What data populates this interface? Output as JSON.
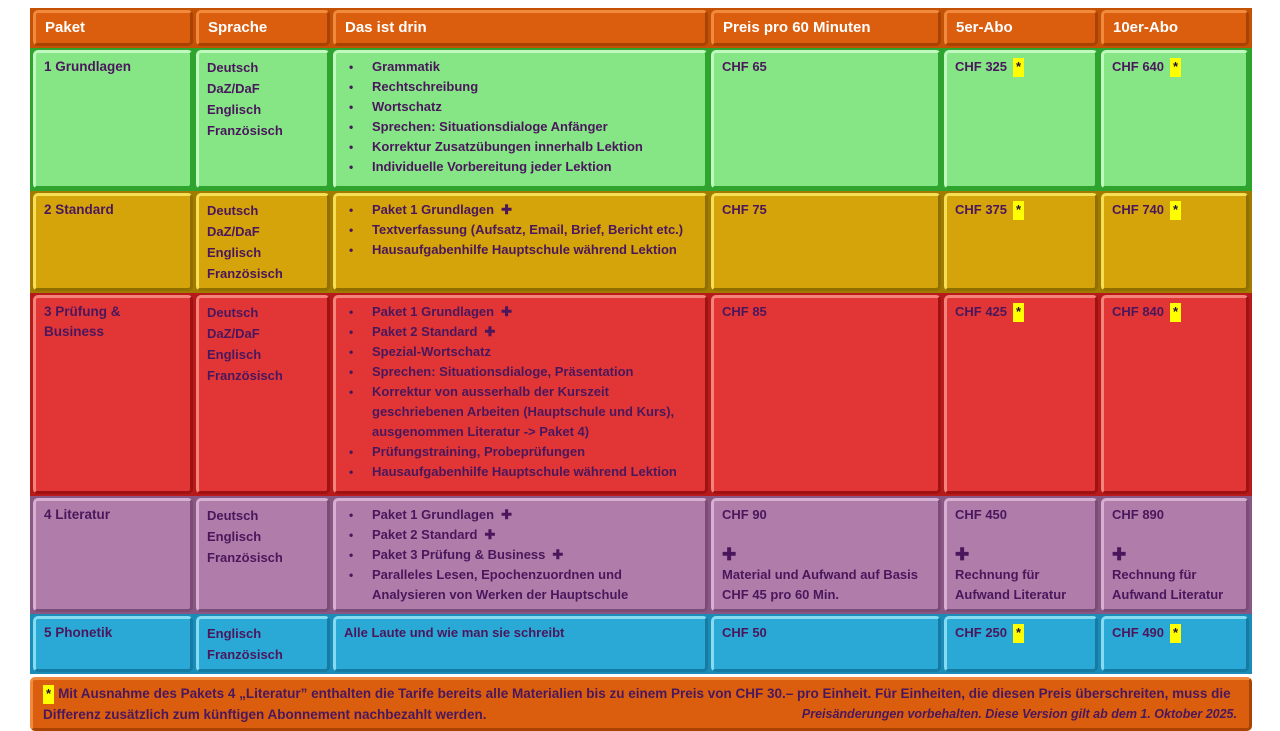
{
  "colors": {
    "text": "#4A175C",
    "header_text": "#FFFFFF",
    "highlight": "#FFFF00",
    "header": {
      "face": "#DB5E0F",
      "light": "#F18A3C",
      "dark": "#A84301",
      "gap": "#C35207"
    }
  },
  "header": {
    "columns": [
      "Paket",
      "Sprache",
      "Das ist drin",
      "Preis pro 60 Minuten",
      "5er-Abo",
      "10er-Abo"
    ]
  },
  "rows": [
    {
      "paket": "1 Grundlagen",
      "sprachen": [
        "Deutsch",
        "DaZ/DaF",
        "Englisch",
        "Französisch"
      ],
      "inhalt": [
        {
          "text": "Grammatik"
        },
        {
          "text": "Rechtschreibung"
        },
        {
          "text": "Wortschatz"
        },
        {
          "text": "Sprechen: Situationsdialoge Anfänger"
        },
        {
          "text": "Korrektur Zusatzübungen innerhalb Lektion"
        },
        {
          "text": "Individuelle Vorbereitung jeder Lektion"
        }
      ],
      "preis": {
        "price": "CHF 65"
      },
      "abo5": {
        "price": "CHF 325",
        "star": true
      },
      "abo10": {
        "price": "CHF 640",
        "star": true
      },
      "theme": {
        "face": "#86E686",
        "light": "#C0F8C0",
        "dark": "#2EA42E",
        "gap": "#2EA42E"
      }
    },
    {
      "paket": "2 Standard",
      "sprachen": [
        "Deutsch",
        "DaZ/DaF",
        "Englisch",
        "Französisch"
      ],
      "inhalt": [
        {
          "text": "Paket 1 Grundlagen",
          "plus": true
        },
        {
          "text": "Textverfassung (Aufsatz, Email, Brief, Bericht etc.)"
        },
        {
          "text": "Hausaufgabenhilfe Hauptschule während Lektion"
        }
      ],
      "preis": {
        "price": "CHF 75"
      },
      "abo5": {
        "price": "CHF 375",
        "star": true
      },
      "abo10": {
        "price": "CHF 740",
        "star": true
      },
      "theme": {
        "face": "#D5A30A",
        "light": "#F6DE55",
        "dark": "#8F6F00",
        "gap": "#A07B00"
      }
    },
    {
      "paket": "3 Prüfung & Business",
      "sprachen": [
        "Deutsch",
        "DaZ/DaF",
        "Englisch",
        "Französisch"
      ],
      "inhalt": [
        {
          "text": "Paket 1 Grundlagen",
          "plus": true
        },
        {
          "text": "Paket 2 Standard",
          "plus": true
        },
        {
          "text": "Spezial-Wortschatz"
        },
        {
          "text": "Sprechen: Situationsdialoge, Präsentation"
        },
        {
          "text": "Korrektur von ausserhalb der Kurszeit geschriebenen Arbeiten (Hauptschule und Kurs), ausgenommen Literatur -> Paket 4)"
        },
        {
          "text": "Prüfungstraining, Probeprüfungen"
        },
        {
          "text": "Hausaufgabenhilfe Hauptschule während Lektion"
        }
      ],
      "preis": {
        "price": "CHF 85"
      },
      "abo5": {
        "price": "CHF 425",
        "star": true
      },
      "abo10": {
        "price": "CHF 840",
        "star": true
      },
      "theme": {
        "face": "#E23636",
        "light": "#F4837A",
        "dark": "#A01212",
        "gap": "#B71A1A"
      }
    },
    {
      "paket": "4 Literatur",
      "sprachen": [
        "Deutsch",
        "Englisch",
        "Französisch"
      ],
      "inhalt": [
        {
          "text": "Paket 1 Grundlagen",
          "plus": true
        },
        {
          "text": "Paket 2 Standard",
          "plus": true
        },
        {
          "text": "Paket 3 Prüfung & Business",
          "plus": true
        },
        {
          "text": "Paralleles Lesen, Epochenzuordnen und Analysieren von Werken der Hauptschule"
        }
      ],
      "preis": {
        "price": "CHF 90",
        "extra": "Material und Aufwand auf Basis CHF 45 pro 60 Min."
      },
      "abo5": {
        "price": "CHF 450",
        "extra": "Rechnung für Aufwand Literatur"
      },
      "abo10": {
        "price": "CHF 890",
        "extra": "Rechnung für Aufwand Literatur"
      },
      "theme": {
        "face": "#B07CA9",
        "light": "#D7AFD3",
        "dark": "#7B4C76",
        "gap": "#8A5784"
      }
    },
    {
      "paket": "5 Phonetik",
      "sprachen": [
        "Englisch",
        "Französisch"
      ],
      "inhalt": [
        {
          "text": "Alle Laute und wie man sie schreibt",
          "bullet": false
        }
      ],
      "preis": {
        "price": "CHF 50"
      },
      "abo5": {
        "price": "CHF 250",
        "star": true
      },
      "abo10": {
        "price": "CHF 490",
        "star": true
      },
      "theme": {
        "face": "#2BA9D6",
        "light": "#85DCF1",
        "dark": "#157BA3",
        "gap": "#1B8BB7"
      }
    }
  ],
  "footnote": {
    "star": "*",
    "text": "Mit Ausnahme des Pakets 4 „Literatur” enthalten die Tarife bereits alle Materialien bis zu einem Preis von CHF 30.– pro Einheit. Für Einheiten, die diesen Preis überschreiten, muss die Differenz zusätzlich zum künftigen Abonnement nachbezahlt werden.",
    "version": "Preisänderungen vorbehalten. Diese Version gilt ab dem 1. Oktober 2025."
  }
}
